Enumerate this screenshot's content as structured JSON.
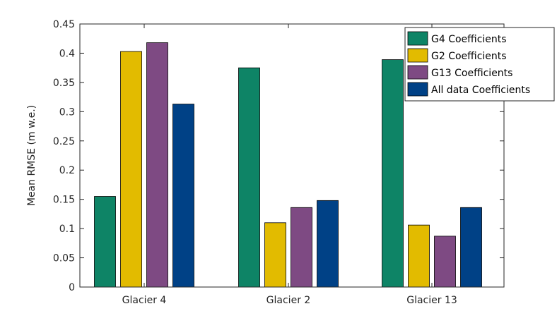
{
  "chart_data": {
    "type": "bar",
    "categories": [
      "Glacier 4",
      "Glacier 2",
      "Glacier 13"
    ],
    "series": [
      {
        "name": "G4 Coefficients",
        "color": "#0e8466",
        "values": [
          0.155,
          0.375,
          0.389
        ]
      },
      {
        "name": "G2 Coefficients",
        "color": "#e2bb00",
        "values": [
          0.403,
          0.11,
          0.106
        ]
      },
      {
        "name": "G13 Coefficients",
        "color": "#7e4a83",
        "values": [
          0.418,
          0.136,
          0.087
        ]
      },
      {
        "name": "All data Coefficients",
        "color": "#004186",
        "values": [
          0.313,
          0.148,
          0.136
        ]
      }
    ],
    "ylabel": "Mean RMSE (m w.e.)",
    "xlabel": "",
    "ylim": [
      0,
      0.45
    ],
    "yticks": [
      "0",
      "0.05",
      "0.1",
      "0.15",
      "0.2",
      "0.25",
      "0.3",
      "0.35",
      "0.4",
      "0.45"
    ],
    "grid": false,
    "legend_position": "top-right"
  }
}
